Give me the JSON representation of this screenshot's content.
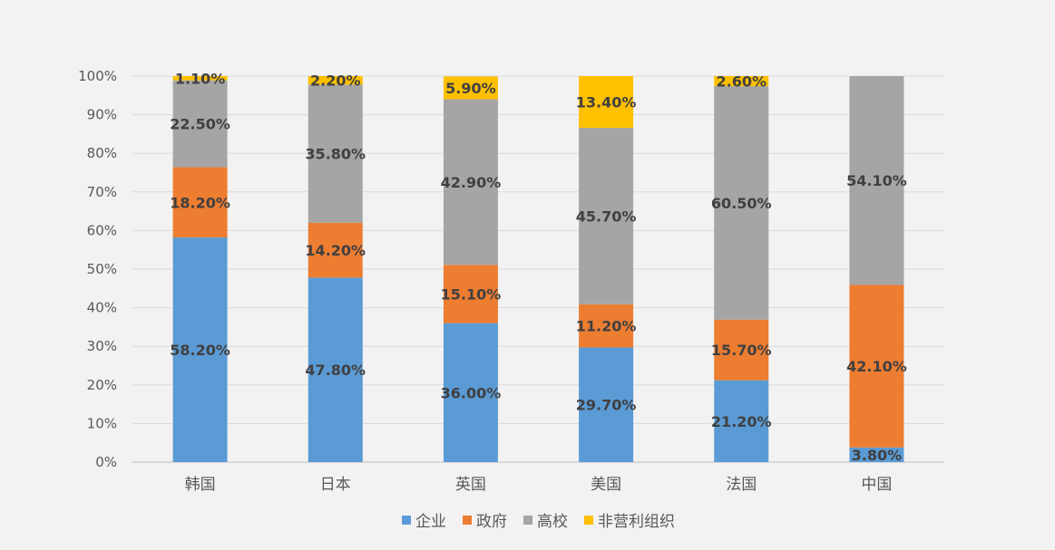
{
  "chart_data": {
    "type": "bar",
    "stacked": true,
    "percent_stacked": true,
    "title": "",
    "xlabel": "",
    "ylabel": "",
    "ylim": [
      0,
      100
    ],
    "yticks": [
      "0%",
      "10%",
      "20%",
      "30%",
      "40%",
      "50%",
      "60%",
      "70%",
      "80%",
      "90%",
      "100%"
    ],
    "grid": true,
    "legend_position": "bottom",
    "categories": [
      "韩国",
      "日本",
      "英国",
      "美国",
      "法国",
      "中国"
    ],
    "series": [
      {
        "name": "企业",
        "color": "#5b9bd5",
        "values": [
          58.2,
          47.8,
          36.0,
          29.7,
          21.2,
          3.8
        ],
        "labels": [
          "58.20%",
          "47.80%",
          "36.00%",
          "29.70%",
          "21.20%",
          "3.80%"
        ]
      },
      {
        "name": "政府",
        "color": "#ed7d31",
        "values": [
          18.2,
          14.2,
          15.1,
          11.2,
          15.7,
          42.1
        ],
        "labels": [
          "18.20%",
          "14.20%",
          "15.10%",
          "11.20%",
          "15.70%",
          "42.10%"
        ]
      },
      {
        "name": "高校",
        "color": "#a5a5a5",
        "values": [
          22.5,
          35.8,
          42.9,
          45.7,
          60.5,
          54.1
        ],
        "labels": [
          "22.50%",
          "35.80%",
          "42.90%",
          "45.70%",
          "60.50%",
          "54.10%"
        ]
      },
      {
        "name": "非营利组织",
        "color": "#ffc000",
        "values": [
          1.1,
          2.2,
          5.9,
          13.4,
          2.6,
          0
        ],
        "labels": [
          "1.10%",
          "2.20%",
          "5.90%",
          "13.40%",
          "2.60%",
          ""
        ]
      }
    ]
  }
}
